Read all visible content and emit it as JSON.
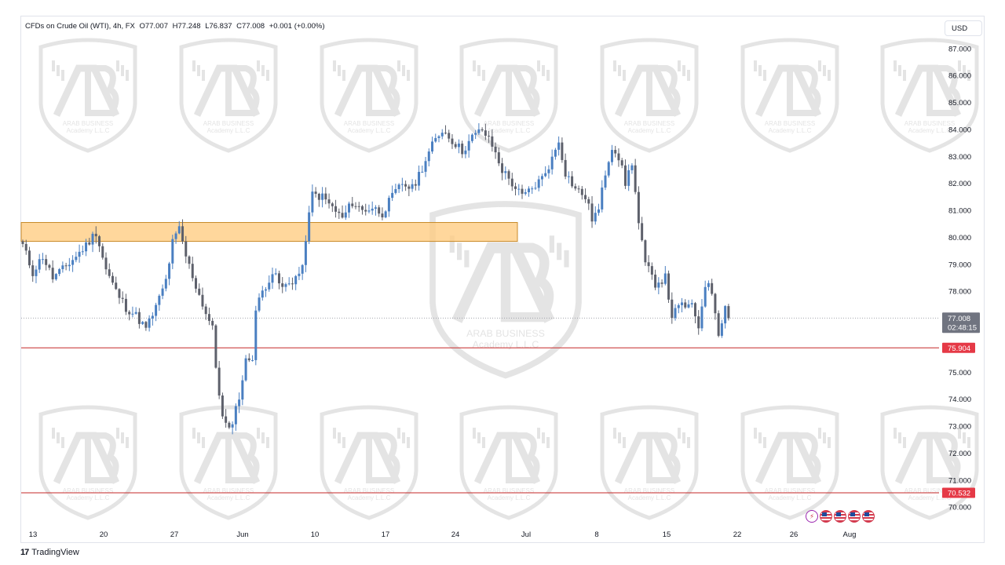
{
  "header": {
    "symbol": "CFDs on Crude Oil (WTI), 4h, FX",
    "open": "O77.007",
    "high": "H77.248",
    "low": "L76.837",
    "close": "C77.008",
    "change": "+0.001 (+0.00%)"
  },
  "currency": "USD",
  "footer": {
    "brand": "TradingView"
  },
  "watermark": {
    "line1": "ARAB BUSINESS",
    "line2": "Academy L.L.C"
  },
  "colors": {
    "candle_up": "#4a7fc1",
    "candle_down": "#5d606b",
    "zone_fill": "#ffcc80",
    "level_line": "#c62828",
    "level_badge": "#e53946",
    "last_price_badge": "#707480"
  },
  "chart_data": {
    "type": "candlestick",
    "timeframe": "4h",
    "y_axis": {
      "min": 69.6,
      "max": 87.4,
      "ticks": [
        "87.000",
        "86.000",
        "85.000",
        "84.000",
        "83.000",
        "82.000",
        "81.000",
        "80.000",
        "79.000",
        "78.000",
        "77.000",
        "76.000",
        "75.000",
        "74.000",
        "73.000",
        "72.000",
        "71.000",
        "70.000"
      ]
    },
    "x_axis": {
      "ticks": [
        "13",
        "20",
        "27",
        "Jun",
        "10",
        "17",
        "24",
        "Jul",
        "8",
        "15",
        "22",
        "26",
        "Aug"
      ]
    },
    "last_price": {
      "value": 77.008,
      "label": "77.008",
      "countdown": "02:48:15"
    },
    "levels": [
      {
        "value": 75.904,
        "label": "75.904"
      },
      {
        "value": 70.532,
        "label": "70.532"
      }
    ],
    "zone": {
      "low": 79.85,
      "high": 80.55,
      "from_x": "13",
      "to_x": "Jul"
    },
    "close_path": [
      [
        0,
        79.7
      ],
      [
        3,
        78.7
      ],
      [
        6,
        79.3
      ],
      [
        9,
        78.5
      ],
      [
        12,
        78.8
      ],
      [
        16,
        79.3
      ],
      [
        19,
        79.7
      ],
      [
        22,
        80.2
      ],
      [
        25,
        78.8
      ],
      [
        28,
        78.0
      ],
      [
        31,
        77.4
      ],
      [
        34,
        77.1
      ],
      [
        37,
        76.6
      ],
      [
        40,
        77.4
      ],
      [
        43,
        78.4
      ],
      [
        45,
        79.8
      ],
      [
        47,
        80.3
      ],
      [
        49,
        79.3
      ],
      [
        52,
        78.2
      ],
      [
        55,
        77.2
      ],
      [
        57,
        76.6
      ],
      [
        58,
        75.2
      ],
      [
        60,
        73.3
      ],
      [
        62,
        72.8
      ],
      [
        65,
        74.1
      ],
      [
        67,
        75.4
      ],
      [
        69,
        75.6
      ],
      [
        70,
        77.3
      ],
      [
        72,
        78.0
      ],
      [
        75,
        78.7
      ],
      [
        78,
        78.1
      ],
      [
        81,
        78.4
      ],
      [
        84,
        78.8
      ],
      [
        85,
        80.0
      ],
      [
        87,
        81.6
      ],
      [
        90,
        81.5
      ],
      [
        93,
        81.1
      ],
      [
        96,
        80.7
      ],
      [
        99,
        81.3
      ],
      [
        102,
        81.0
      ],
      [
        105,
        81.1
      ],
      [
        108,
        80.9
      ],
      [
        111,
        81.5
      ],
      [
        114,
        82.0
      ],
      [
        117,
        81.8
      ],
      [
        120,
        82.6
      ],
      [
        123,
        83.4
      ],
      [
        126,
        84.0
      ],
      [
        129,
        83.6
      ],
      [
        132,
        83.2
      ],
      [
        135,
        83.7
      ],
      [
        138,
        84.0
      ],
      [
        141,
        83.4
      ],
      [
        144,
        82.5
      ],
      [
        147,
        82.0
      ],
      [
        150,
        81.5
      ],
      [
        153,
        81.8
      ],
      [
        156,
        82.2
      ],
      [
        159,
        82.9
      ],
      [
        161,
        83.6
      ],
      [
        163,
        82.4
      ],
      [
        166,
        81.8
      ],
      [
        169,
        81.5
      ],
      [
        171,
        80.7
      ],
      [
        173,
        81.0
      ],
      [
        175,
        82.4
      ],
      [
        177,
        83.4
      ],
      [
        179,
        83.0
      ],
      [
        181,
        82.0
      ],
      [
        183,
        82.8
      ],
      [
        185,
        80.5
      ],
      [
        187,
        79.0
      ],
      [
        190,
        78.3
      ],
      [
        193,
        78.5
      ],
      [
        195,
        77.1
      ],
      [
        198,
        77.5
      ],
      [
        201,
        77.4
      ],
      [
        203,
        76.7
      ],
      [
        205,
        78.3
      ],
      [
        207,
        78.0
      ],
      [
        209,
        76.5
      ],
      [
        211,
        77.4
      ],
      [
        212,
        77.0
      ]
    ]
  }
}
